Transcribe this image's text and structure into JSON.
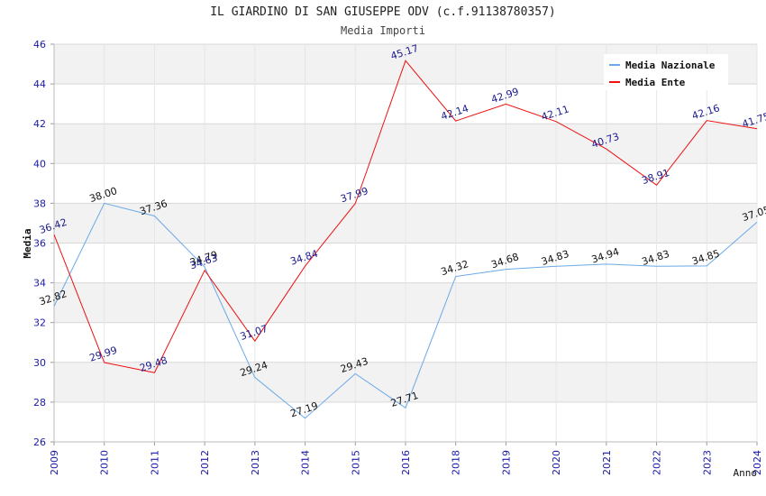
{
  "chart_data": {
    "type": "line",
    "title": "IL GIARDINO DI SAN GIUSEPPE ODV (c.f.91138780357)",
    "subtitle": "Media Importi",
    "xlabel": "Anno",
    "ylabel": "Media",
    "ylim": [
      26,
      46
    ],
    "yticks": [
      "26",
      "28",
      "30",
      "32",
      "34",
      "36",
      "38",
      "40",
      "42",
      "44",
      "46"
    ],
    "categories": [
      "2009",
      "2010",
      "2011",
      "2012",
      "2013",
      "2014",
      "2015",
      "2016",
      "2018",
      "2019",
      "2020",
      "2021",
      "2022",
      "2023",
      "2024"
    ],
    "series": [
      {
        "name": "Media Nazionale",
        "color": "#6aa9e8",
        "values": [
          32.82,
          38.0,
          37.36,
          34.79,
          29.24,
          27.19,
          29.43,
          27.71,
          34.32,
          34.68,
          34.83,
          34.94,
          34.83,
          34.85,
          37.05
        ],
        "labels": [
          "32.82",
          "38.00",
          "37.36",
          "34.79",
          "29.24",
          "27.19",
          "29.43",
          "27.71",
          "34.32",
          "34.68",
          "34.83",
          "34.94",
          "34.83",
          "34.85",
          "37.05"
        ]
      },
      {
        "name": "Media Ente",
        "color": "#ee1111",
        "values": [
          36.42,
          29.99,
          29.48,
          34.63,
          31.07,
          34.84,
          37.99,
          45.17,
          42.14,
          42.99,
          42.11,
          40.73,
          38.91,
          42.16,
          41.75
        ],
        "labels": [
          "36.42",
          "29.99",
          "29.48",
          "34.63",
          "31.07",
          "34.84",
          "37.99",
          "45.17",
          "42.14",
          "42.99",
          "42.11",
          "40.73",
          "38.91",
          "42.16",
          "41.75"
        ]
      }
    ],
    "grid": true,
    "legend_position": "top-right",
    "band_colors": [
      "#f2f2f2",
      "#ffffff"
    ]
  }
}
